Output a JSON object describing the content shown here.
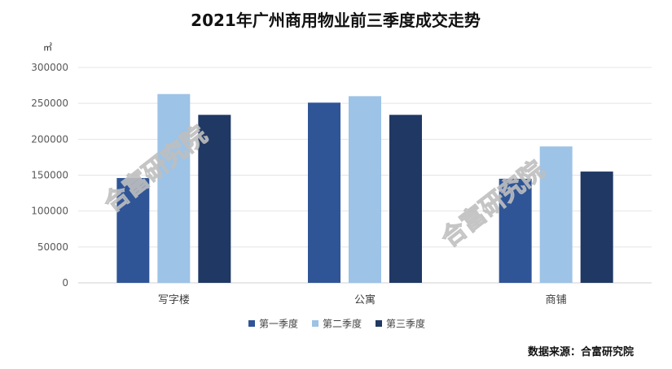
{
  "chart_data": {
    "type": "bar",
    "title": "2021年广州商用物业前三季度成交走势",
    "unit": "㎡",
    "categories": [
      "写字楼",
      "公寓",
      "商铺"
    ],
    "series": [
      {
        "name": "第一季度",
        "color": "#2f5597",
        "values": [
          146000,
          251000,
          145000
        ]
      },
      {
        "name": "第二季度",
        "color": "#9dc3e6",
        "values": [
          263000,
          260000,
          190000
        ]
      },
      {
        "name": "第三季度",
        "color": "#203864",
        "values": [
          234000,
          234000,
          155000
        ]
      }
    ],
    "ylim": [
      0,
      300000
    ],
    "yticks": [
      0,
      50000,
      100000,
      150000,
      200000,
      250000,
      300000
    ],
    "ytick_labels": [
      "0",
      "50000",
      "100000",
      "150000",
      "200000",
      "250000",
      "300000"
    ],
    "grid": true,
    "legend_position": "bottom"
  },
  "source": "数据来源：合富研究院",
  "watermark": "合富研究院"
}
